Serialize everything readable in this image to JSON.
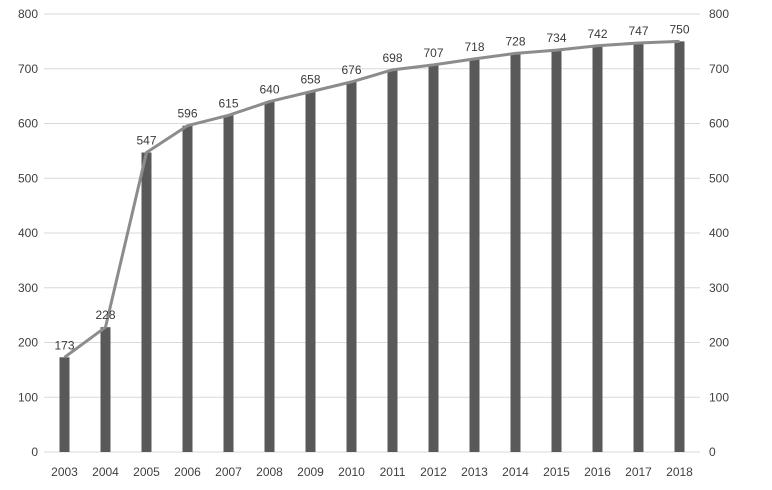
{
  "chart_data": {
    "type": "bar",
    "title": "",
    "xlabel": "",
    "ylabel": "",
    "categories": [
      "2003",
      "2004",
      "2005",
      "2006",
      "2007",
      "2008",
      "2009",
      "2010",
      "2011",
      "2012",
      "2013",
      "2014",
      "2015",
      "2016",
      "2017",
      "2018"
    ],
    "series": [
      {
        "type": "bar",
        "values": [
          173,
          228,
          547,
          596,
          615,
          640,
          658,
          676,
          698,
          707,
          718,
          728,
          734,
          742,
          747,
          750
        ],
        "color": "#595959"
      },
      {
        "type": "line",
        "values": [
          173,
          228,
          547,
          596,
          615,
          640,
          658,
          676,
          698,
          707,
          718,
          728,
          734,
          742,
          747,
          750
        ],
        "color": "#8c8c8c"
      }
    ],
    "data_labels": [
      "173",
      "228",
      "547",
      "596",
      "615",
      "640",
      "658",
      "676",
      "698",
      "707",
      "718",
      "728",
      "734",
      "742",
      "747",
      "750"
    ],
    "ylim": [
      0,
      800
    ],
    "y_ticks": [
      "0",
      "100",
      "200",
      "300",
      "400",
      "500",
      "600",
      "700",
      "800"
    ],
    "y2_ticks": [
      "0",
      "100",
      "200",
      "300",
      "400",
      "500",
      "600",
      "700",
      "800"
    ],
    "grid": true,
    "legend": "none"
  }
}
